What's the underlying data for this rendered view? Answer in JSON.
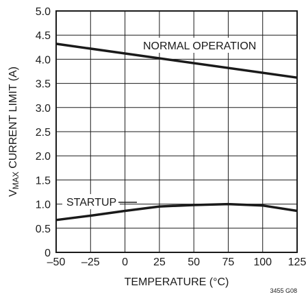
{
  "chart_data": {
    "type": "line",
    "xlabel": "TEMPERATURE (°C)",
    "ylabel": {
      "prefix": "V",
      "subscript": "MAX",
      "suffix": " CURRENT LIMIT (A)"
    },
    "xlim": [
      -50,
      125
    ],
    "ylim": [
      0,
      5.0
    ],
    "x_ticks": [
      -50,
      -25,
      0,
      25,
      50,
      75,
      100,
      125
    ],
    "x_tick_labels": [
      "–50",
      "–25",
      "0",
      "25",
      "50",
      "75",
      "100",
      "125"
    ],
    "y_ticks": [
      0,
      0.5,
      1.0,
      1.5,
      2.0,
      2.5,
      3.0,
      3.5,
      4.0,
      4.5,
      5.0
    ],
    "y_tick_labels": [
      "0",
      "0.5",
      "1.0",
      "1.5",
      "2.0",
      "2.5",
      "3.0",
      "3.5",
      "4.0",
      "4.5",
      "5.0"
    ],
    "grid": true,
    "line_color": "#1a1a1a",
    "series": [
      {
        "name": "NORMAL OPERATION",
        "x": [
          -50,
          125
        ],
        "y": [
          4.32,
          3.62
        ]
      },
      {
        "name": "STARTUP",
        "x": [
          -50,
          -25,
          0,
          25,
          50,
          75,
          100,
          125
        ],
        "y": [
          0.67,
          0.76,
          0.86,
          0.95,
          0.98,
          1.0,
          0.97,
          0.86
        ]
      }
    ],
    "annotations": [
      "NORMAL OPERATION",
      "STARTUP"
    ],
    "figure_code": "3455 G08"
  }
}
